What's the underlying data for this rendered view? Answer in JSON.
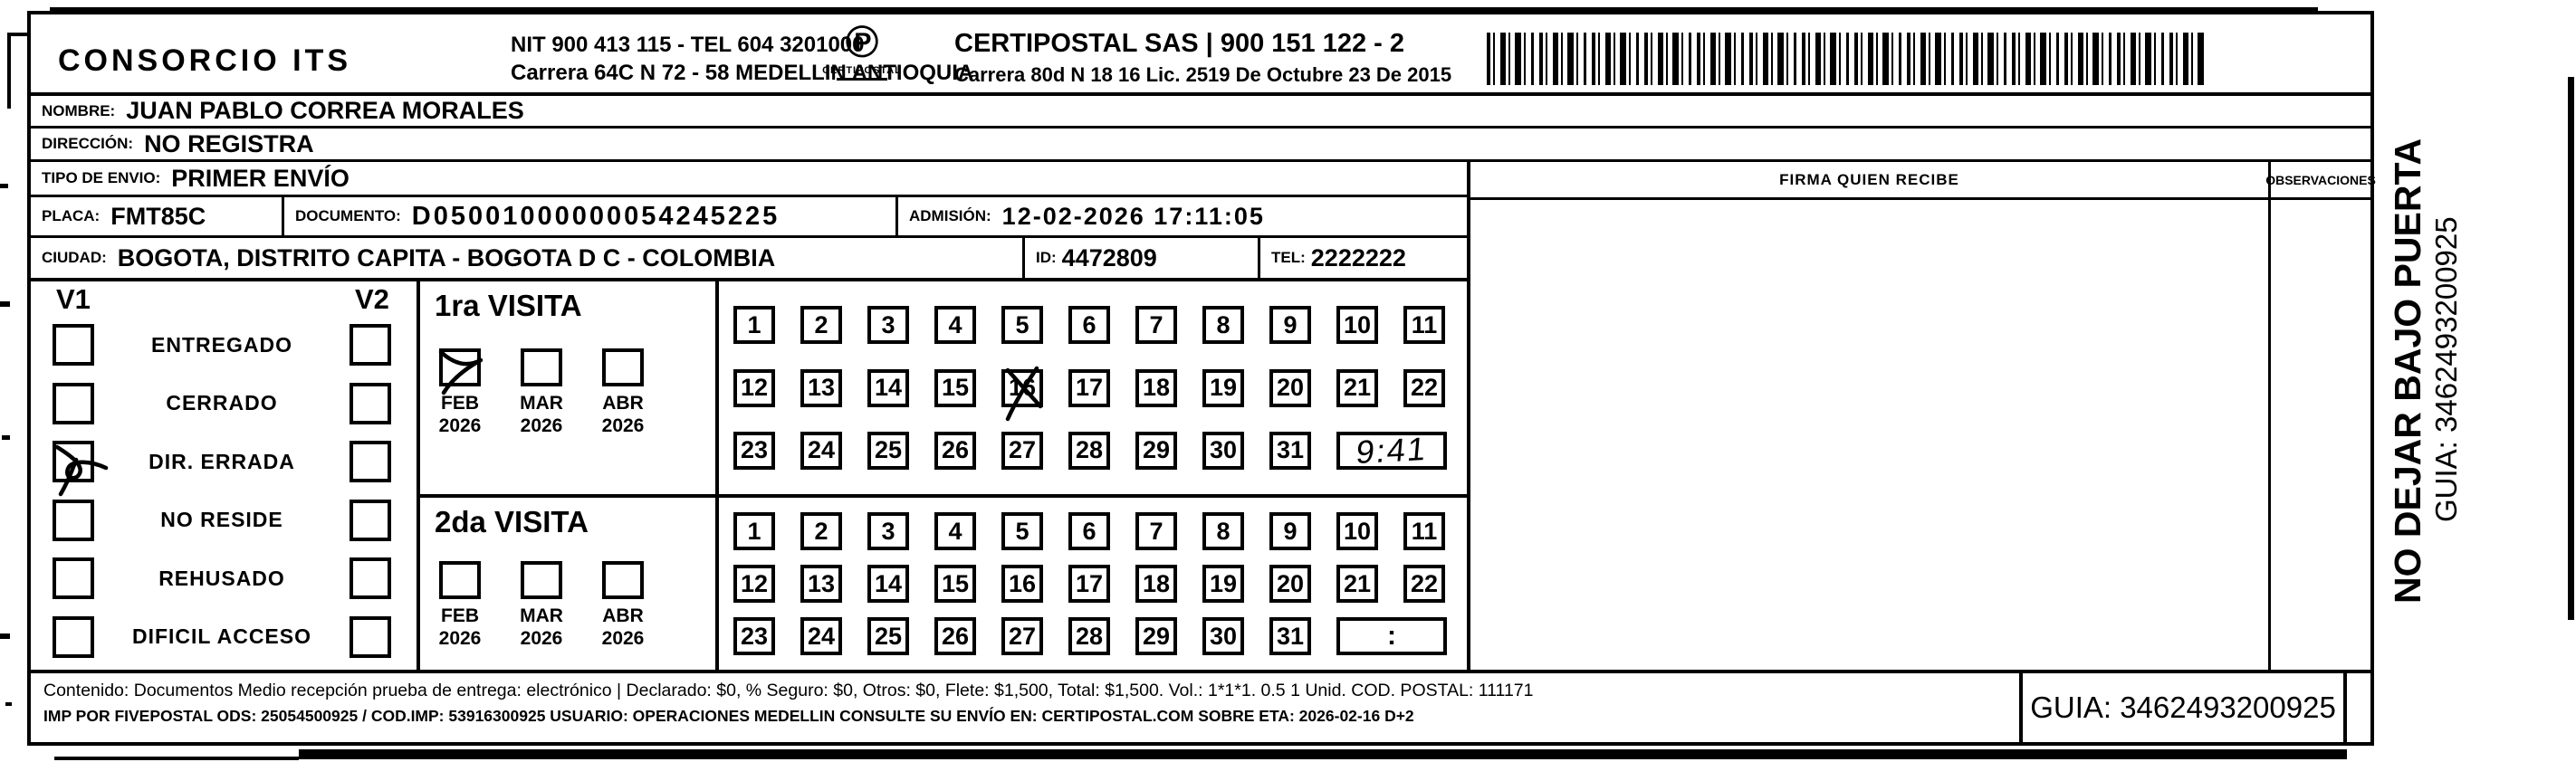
{
  "colors": {
    "ink": "#000000",
    "paper": "#ffffff"
  },
  "header": {
    "company": "CONSORCIO ITS",
    "company_nit": "NIT 900 413 115 - TEL 604 3201000",
    "company_address": "Carrera 64C N 72 - 58 MEDELLIN ANTIOQUIA",
    "logo_glyph": "℗",
    "logo_caption": "CERTIPOSTAL",
    "operator_name": "CERTIPOSTAL SAS | 900 151 122 - 2",
    "operator_address": "Carrera 80d N 18 16  Lic. 2519 De Octubre 23 De 2015"
  },
  "recipient": {
    "nombre_label": "NOMBRE:",
    "nombre": "JUAN PABLO CORREA MORALES",
    "direccion_label": "DIRECCIÓN:",
    "direccion": "NO REGISTRA",
    "tipo_envio_label": "TIPO DE ENVIO:",
    "tipo_envio": "PRIMER ENVÍO",
    "placa_label": "PLACA:",
    "placa": "FMT85C",
    "documento_label": "DOCUMENTO:",
    "documento": "D05001000000054245225",
    "admision_label": "ADMISIÓN:",
    "admision": "12-02-2026 17:11:05",
    "ciudad_label": "CIUDAD:",
    "ciudad": "BOGOTA, DISTRITO CAPITA - BOGOTA D C - COLOMBIA",
    "id_label": "ID:",
    "id": "4472809",
    "tel_label": "TEL:",
    "tel": "2222222"
  },
  "status": {
    "col1_header": "V1",
    "col2_header": "V2",
    "items": [
      {
        "label": "ENTREGADO",
        "v1": false,
        "v2": false
      },
      {
        "label": "CERRADO",
        "v1": false,
        "v2": false
      },
      {
        "label": "DIR. ERRADA",
        "v1": true,
        "v2": false
      },
      {
        "label": "NO RESIDE",
        "v1": false,
        "v2": false
      },
      {
        "label": "REHUSADO",
        "v1": false,
        "v2": false
      },
      {
        "label": "DIFICIL ACCESO",
        "v1": false,
        "v2": false
      }
    ]
  },
  "visits": {
    "first": {
      "title": "1ra VISITA",
      "months": [
        {
          "month": "FEB",
          "year": "2026",
          "checked": true
        },
        {
          "month": "MAR",
          "year": "2026",
          "checked": false
        },
        {
          "month": "ABR",
          "year": "2026",
          "checked": false
        }
      ],
      "day_rows": [
        [
          1,
          2,
          3,
          4,
          5,
          6,
          7,
          8,
          9,
          10,
          11
        ],
        [
          12,
          13,
          14,
          15,
          16,
          17,
          18,
          19,
          20,
          21,
          22
        ],
        [
          23,
          24,
          25,
          26,
          27,
          28,
          29,
          30,
          31
        ]
      ],
      "crossed_day": 16,
      "note": "9:41",
      "note_handwritten": true
    },
    "second": {
      "title": "2da VISITA",
      "months": [
        {
          "month": "FEB",
          "year": "2026",
          "checked": false
        },
        {
          "month": "MAR",
          "year": "2026",
          "checked": false
        },
        {
          "month": "ABR",
          "year": "2026",
          "checked": false
        }
      ],
      "day_rows": [
        [
          1,
          2,
          3,
          4,
          5,
          6,
          7,
          8,
          9,
          10,
          11
        ],
        [
          12,
          13,
          14,
          15,
          16,
          17,
          18,
          19,
          20,
          21,
          22
        ],
        [
          23,
          24,
          25,
          26,
          27,
          28,
          29,
          30,
          31
        ]
      ],
      "crossed_day": null,
      "note": ":",
      "note_handwritten": false
    }
  },
  "signature": {
    "firma_header": "FIRMA QUIEN RECIBE",
    "observaciones_header": "OBSERVACIONES"
  },
  "side_note": {
    "warning": "NO DEJAR BAJO PUERTA",
    "guia": "GUIA: 3462493200925"
  },
  "footer": {
    "line1": "Contenido: Documentos Medio recepción prueba de entrega: electrónico | Declarado: $0, % Seguro: $0, Otros: $0, Flete: $1,500, Total: $1,500. Vol.: 1*1*1. 0.5  1 Unid. COD. POSTAL: 111171",
    "line2": "IMP POR FIVEPOSTAL ODS: 25054500925 / COD.IMP: 53916300925 USUARIO: OPERACIONES MEDELLIN CONSULTE SU ENVÍO EN: CERTIPOSTAL.COM SOBRE ETA: 2026-02-16 D+2",
    "guia": "GUIA: 3462493200925"
  }
}
